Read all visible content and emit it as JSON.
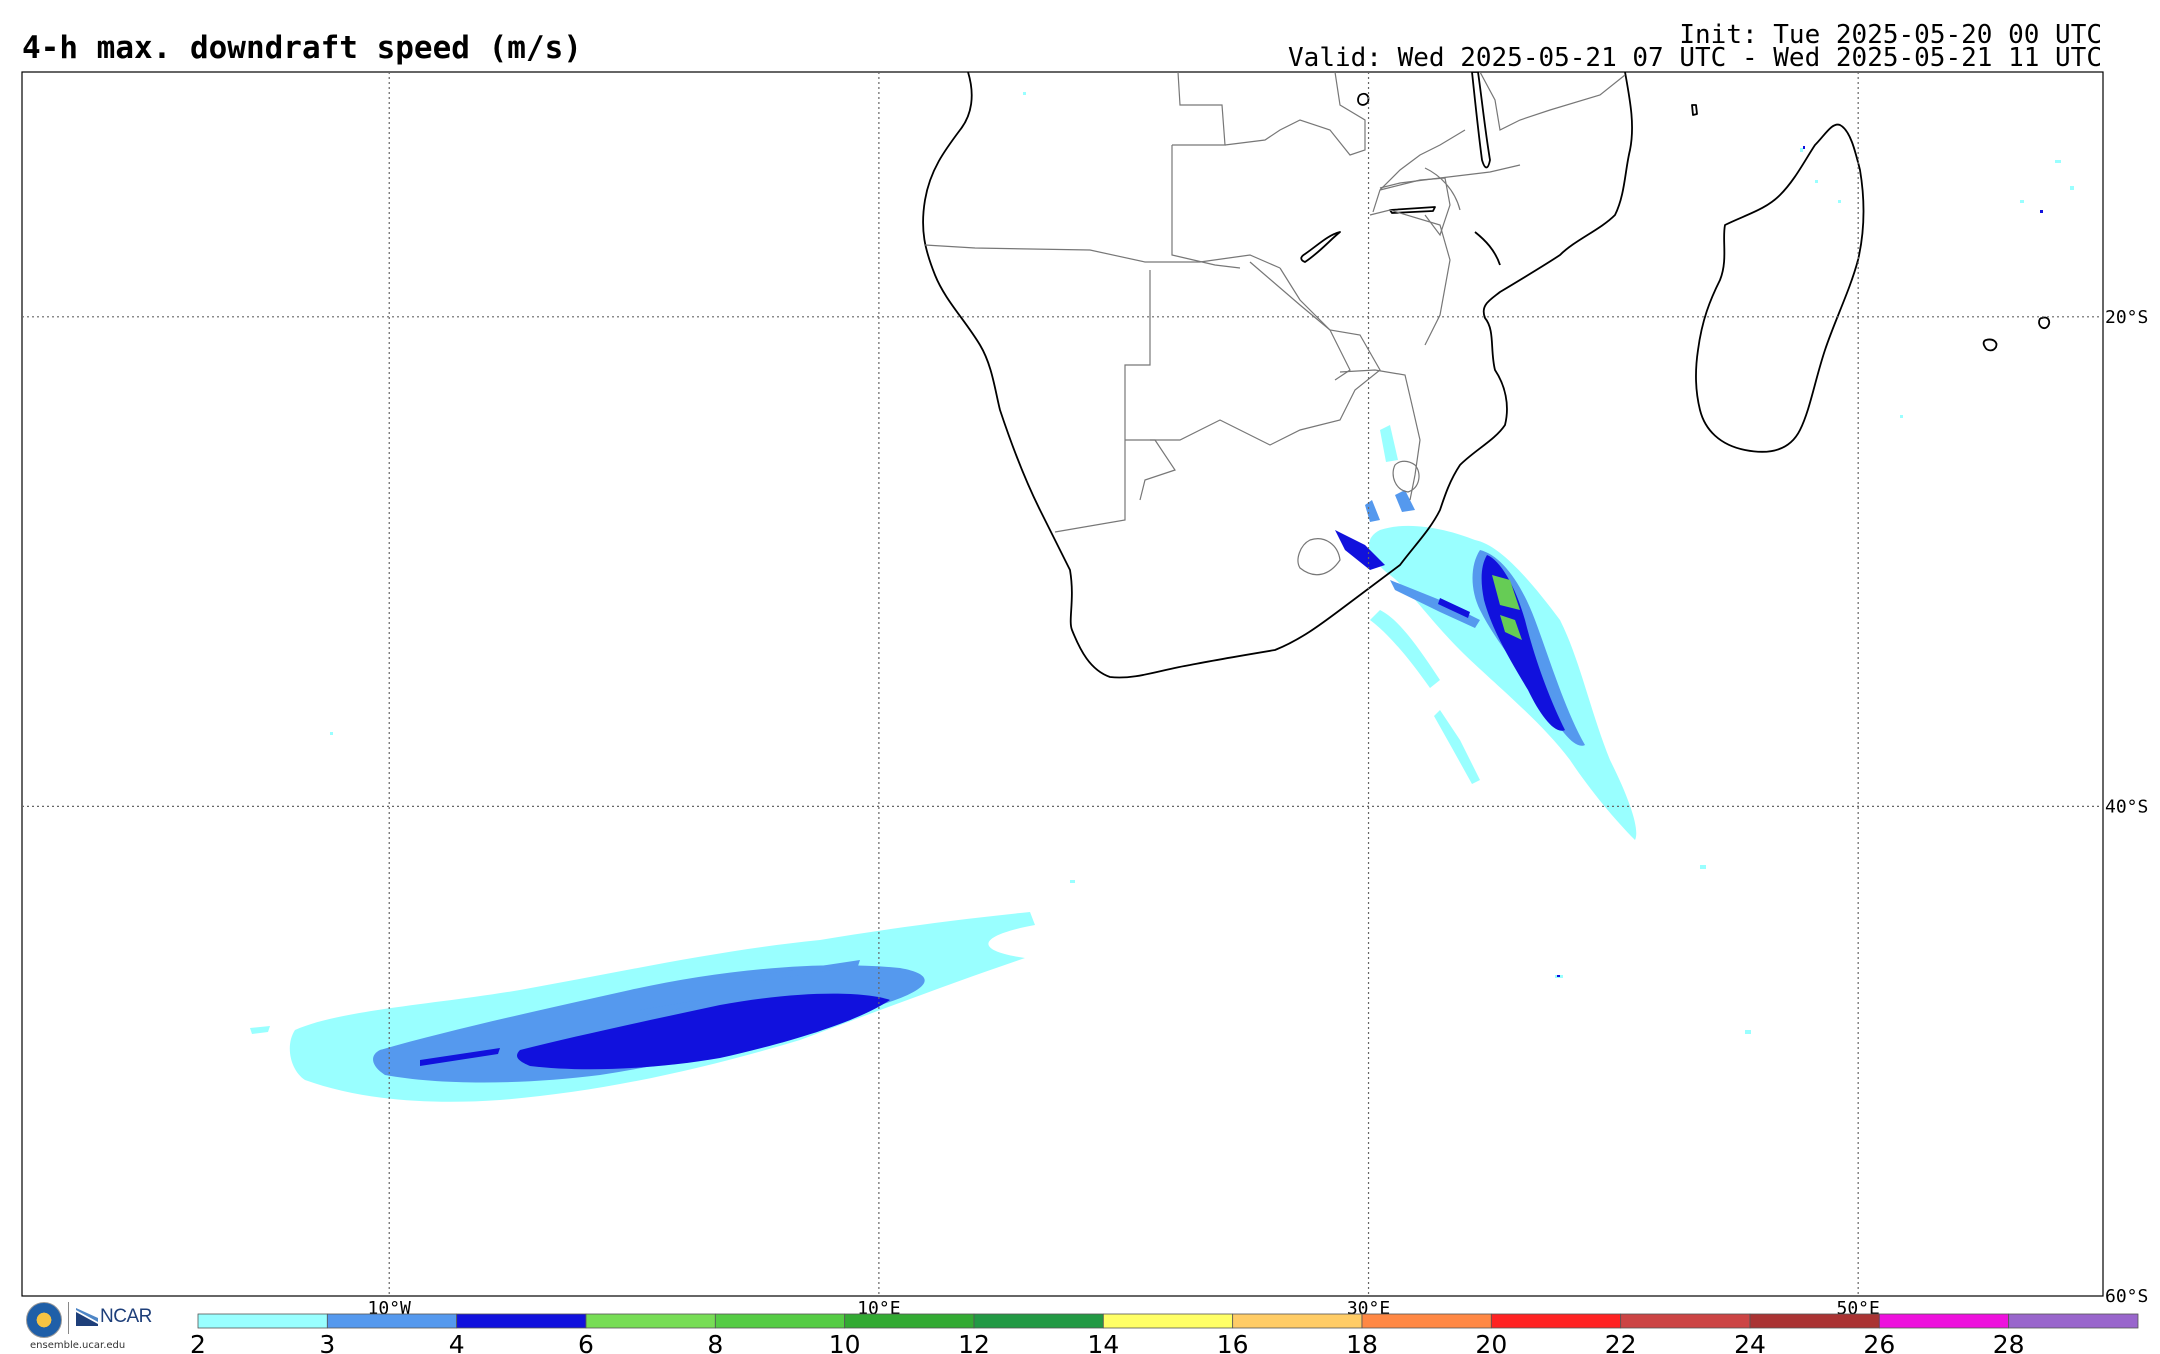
{
  "header": {
    "title": "4-h max. downdraft speed (m/s)",
    "init": "Init: Tue 2025-05-20 00 UTC",
    "valid": "Valid: Wed 2025-05-21 07 UTC - Wed 2025-05-21 11 UTC"
  },
  "map": {
    "lon_range": [
      -25,
      60
    ],
    "lat_range": [
      -60,
      -10
    ],
    "lon_labels": [
      "10°W",
      "10°E",
      "30°E",
      "50°E"
    ],
    "lon_values": [
      -10,
      10,
      30,
      50
    ],
    "lat_labels": [
      "20°S",
      "40°S",
      "60°S"
    ],
    "lat_values": [
      -20,
      -40,
      -60
    ],
    "grid_style": "dotted"
  },
  "colorbar": {
    "ticks": [
      "2",
      "3",
      "4",
      "6",
      "8",
      "10",
      "12",
      "14",
      "16",
      "18",
      "20",
      "22",
      "24",
      "26",
      "28"
    ],
    "colors": [
      "#99ffff",
      "#5599ee",
      "#1111dd",
      "#77dd55",
      "#55cc44",
      "#33aa33",
      "#229944",
      "#ffff66",
      "#ffcc66",
      "#ff8844",
      "#ff2222",
      "#cc4444",
      "#aa3333",
      "#ee11dd",
      "#9966cc"
    ]
  },
  "logos": {
    "nsf": "NSF",
    "ncar": "NCAR",
    "site": "ensemble.ucar.edu"
  },
  "icons": [
    "nsf-seal-icon",
    "ncar-logo-icon"
  ]
}
